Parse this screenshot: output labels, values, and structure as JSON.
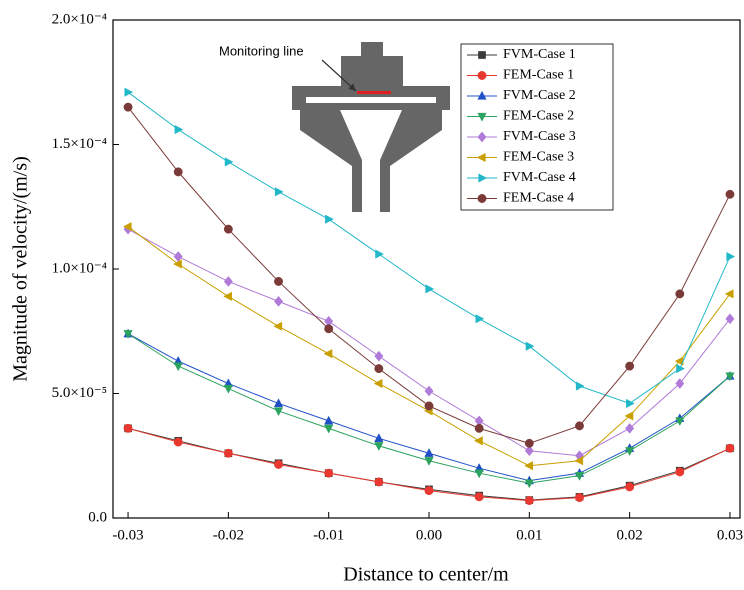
{
  "chart_data": {
    "type": "line",
    "xlabel": "Distance to center/m",
    "ylabel": "Magnitude of velocity/(m/s)",
    "annotation": "Monitoring line",
    "x": [
      -0.03,
      -0.025,
      -0.02,
      -0.015,
      -0.01,
      -0.005,
      0,
      0.005,
      0.01,
      0.015,
      0.02,
      0.025,
      0.03
    ],
    "xlim": [
      -0.0315,
      0.031
    ],
    "xticks": [
      -0.03,
      -0.02,
      -0.01,
      {
        "value": 0,
        "label": "0.00"
      },
      0.01,
      0.02,
      0.03
    ],
    "ylim": [
      0,
      0.0002
    ],
    "yticks": [
      {
        "value": 0,
        "label": "0.0"
      },
      {
        "value": 5e-05,
        "label": "5.0×10⁻⁵"
      },
      {
        "value": 0.0001,
        "label": "1.0×10⁻⁴"
      },
      {
        "value": 0.00015,
        "label": "1.5×10⁻⁴"
      },
      {
        "value": 0.0002,
        "label": "2.0×10⁻⁴"
      }
    ],
    "legend": "upper right",
    "series": [
      {
        "name": "FVM-Case 1",
        "color": "#3a3a3a",
        "marker": "square",
        "values": [
          3.6e-05,
          3.1e-05,
          2.6e-05,
          2.2e-05,
          1.8e-05,
          1.45e-05,
          1.15e-05,
          9e-06,
          7.2e-06,
          8.5e-06,
          1.3e-05,
          1.9e-05,
          2.8e-05
        ]
      },
      {
        "name": "FEM-Case 1",
        "color": "#e8382f",
        "marker": "circle",
        "values": [
          3.6e-05,
          3.05e-05,
          2.6e-05,
          2.15e-05,
          1.8e-05,
          1.45e-05,
          1.1e-05,
          8.5e-06,
          7e-06,
          8.2e-06,
          1.25e-05,
          1.85e-05,
          2.8e-05
        ]
      },
      {
        "name": "FVM-Case 2",
        "color": "#2050c8",
        "marker": "triangle-up",
        "values": [
          7.4e-05,
          6.3e-05,
          5.4e-05,
          4.6e-05,
          3.9e-05,
          3.2e-05,
          2.6e-05,
          2e-05,
          1.5e-05,
          1.8e-05,
          2.8e-05,
          4e-05,
          5.7e-05
        ]
      },
      {
        "name": "FEM-Case 2",
        "color": "#2ca25f",
        "marker": "triangle-down",
        "values": [
          7.4e-05,
          6.1e-05,
          5.2e-05,
          4.3e-05,
          3.6e-05,
          2.9e-05,
          2.3e-05,
          1.8e-05,
          1.4e-05,
          1.7e-05,
          2.7e-05,
          3.9e-05,
          5.7e-05
        ]
      },
      {
        "name": "FVM-Case 3",
        "color": "#b07ad8",
        "marker": "diamond",
        "values": [
          0.000116,
          0.000105,
          9.5e-05,
          8.7e-05,
          7.9e-05,
          6.5e-05,
          5.1e-05,
          3.9e-05,
          2.7e-05,
          2.5e-05,
          3.6e-05,
          5.4e-05,
          8e-05
        ]
      },
      {
        "name": "FEM-Case 3",
        "color": "#c9a000",
        "marker": "triangle-left",
        "values": [
          0.000117,
          0.000102,
          8.9e-05,
          7.7e-05,
          6.6e-05,
          5.4e-05,
          4.3e-05,
          3.1e-05,
          2.1e-05,
          2.3e-05,
          4.1e-05,
          6.3e-05,
          9e-05
        ]
      },
      {
        "name": "FVM-Case 4",
        "color": "#22b8c8",
        "marker": "triangle-right",
        "values": [
          0.000171,
          0.000156,
          0.000143,
          0.000131,
          0.00012,
          0.000106,
          9.2e-05,
          8e-05,
          6.9e-05,
          5.3e-05,
          4.6e-05,
          6e-05,
          0.000105
        ]
      },
      {
        "name": "FEM-Case 4",
        "color": "#7a3a38",
        "marker": "circle",
        "values": [
          0.000165,
          0.000139,
          0.000116,
          9.5e-05,
          7.6e-05,
          6e-05,
          4.5e-05,
          3.6e-05,
          3e-05,
          3.7e-05,
          6.1e-05,
          9e-05,
          0.00013
        ]
      }
    ]
  }
}
